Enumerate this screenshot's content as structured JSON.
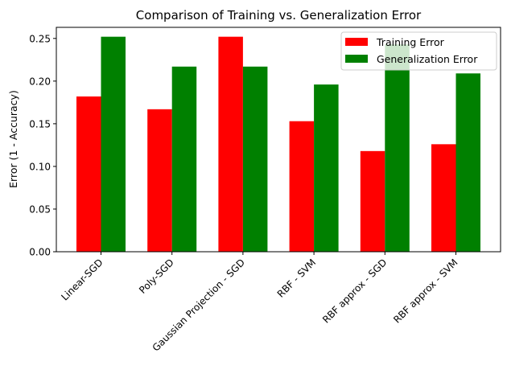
{
  "chart_data": {
    "type": "bar",
    "title": "Comparison of Training vs. Generalization Error",
    "xlabel": "",
    "ylabel": "Error (1 - Accuracy)",
    "ylim": [
      0,
      0.263
    ],
    "yticks": [
      "0.00",
      "0.05",
      "0.10",
      "0.15",
      "0.20",
      "0.25"
    ],
    "categories": [
      "Linear-SGD",
      "Poly-SGD",
      "Gaussian Projection - SGD",
      "RBF - SVM",
      "RBF approx - SGD",
      "RBF approx - SVM"
    ],
    "series": [
      {
        "name": "Training Error",
        "color": "#ff0000",
        "values": [
          0.182,
          0.167,
          0.252,
          0.153,
          0.118,
          0.126
        ]
      },
      {
        "name": "Generalization Error",
        "color": "#008000",
        "values": [
          0.252,
          0.217,
          0.217,
          0.196,
          0.243,
          0.209
        ]
      }
    ],
    "legend": "top-right",
    "grid": false
  }
}
